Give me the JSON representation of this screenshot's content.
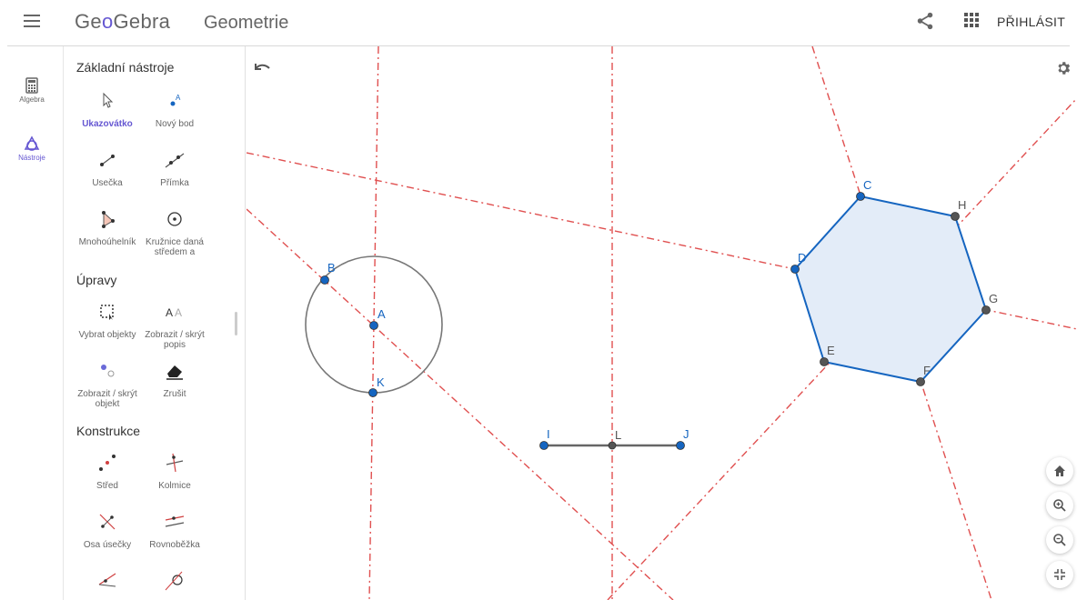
{
  "header": {
    "brand_prefix": "Ge",
    "brand_o": "o",
    "brand_suffix": "Gebra",
    "app_title": "Geometrie",
    "signin_label": "PŘIHLÁSIT"
  },
  "rail": {
    "items": [
      {
        "label": "Algebra",
        "icon": "calculator-icon"
      },
      {
        "label": "Nástroje",
        "icon": "tools-icon"
      }
    ]
  },
  "tools": {
    "sections": [
      {
        "title": "Základní nástroje"
      },
      {
        "title": "Úpravy"
      },
      {
        "title": "Konstrukce"
      }
    ],
    "items": [
      {
        "label": "Ukazovátko"
      },
      {
        "label": "Nový bod"
      },
      {
        "label": "Usečka"
      },
      {
        "label": "Přímka"
      },
      {
        "label": "Mnohoúhelník"
      },
      {
        "label": "Kružnice daná středem a"
      },
      {
        "label": "Vybrat objekty"
      },
      {
        "label": "Zobrazit / skrýt popis"
      },
      {
        "label": "Zobrazit / skrýt objekt"
      },
      {
        "label": "Zrušit"
      },
      {
        "label": "Střed"
      },
      {
        "label": "Kolmice"
      },
      {
        "label": "Osa úsečky"
      },
      {
        "label": "Rovnoběžka"
      }
    ]
  },
  "points": {
    "A": "A",
    "B": "B",
    "K": "K",
    "I": "I",
    "L": "L",
    "J": "J",
    "C": "C",
    "D": "D",
    "E": "E",
    "F": "F",
    "G": "G",
    "H": "H"
  },
  "colors": {
    "accent": "#6557d2",
    "point_blue": "#1565c0",
    "point_dark": "#555555",
    "dashed_line": "#e05050",
    "polygon_edge": "#1565c0",
    "polygon_fill": "#e3ecf8"
  }
}
